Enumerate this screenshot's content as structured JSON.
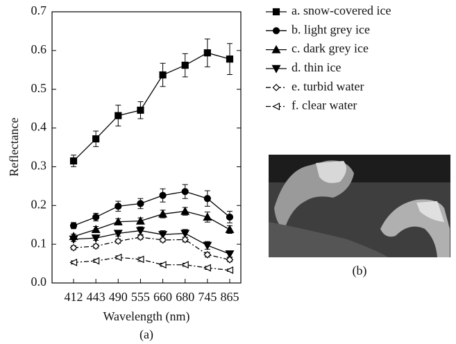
{
  "chart_data": {
    "type": "line",
    "ylabel": "Reflectance",
    "xlabel": "Wavelength (nm)",
    "panel_label": "(a)",
    "image_label": "(b)",
    "categories": [
      "412",
      "443",
      "490",
      "555",
      "660",
      "680",
      "745",
      "865"
    ],
    "ylim": [
      0,
      0.7
    ],
    "yticks": [
      {
        "value": 0,
        "label": "0.0"
      },
      0.1,
      0.2,
      0.3,
      0.4,
      0.5,
      0.6,
      0.7
    ],
    "legend": "outside right",
    "series": [
      {
        "name": "a. snow-covered ice",
        "color": "#000000",
        "marker": "square",
        "line_style": "solid",
        "values": [
          0.315,
          0.372,
          0.432,
          0.446,
          0.537,
          0.562,
          0.594,
          0.578
        ],
        "errors": [
          0.015,
          0.02,
          0.027,
          0.022,
          0.03,
          0.03,
          0.036,
          0.04
        ]
      },
      {
        "name": "b. light grey ice",
        "color": "#000000",
        "marker": "circle",
        "line_style": "solid",
        "values": [
          0.148,
          0.17,
          0.198,
          0.205,
          0.226,
          0.236,
          0.218,
          0.17
        ],
        "errors": [
          0.008,
          0.01,
          0.013,
          0.013,
          0.017,
          0.018,
          0.02,
          0.015
        ]
      },
      {
        "name": "c. dark grey ice",
        "color": "#000000",
        "marker": "triangle-up",
        "line_style": "solid",
        "values": [
          0.12,
          0.138,
          0.158,
          0.16,
          0.178,
          0.185,
          0.17,
          0.138
        ],
        "errors": [
          0.006,
          0.008,
          0.008,
          0.008,
          0.01,
          0.01,
          0.013,
          0.01
        ]
      },
      {
        "name": "d. thin ice",
        "color": "#000000",
        "marker": "triangle-down",
        "line_style": "solid",
        "values": [
          0.113,
          0.116,
          0.128,
          0.135,
          0.125,
          0.128,
          0.097,
          0.075
        ],
        "errors": [
          0.006,
          0.006,
          0.007,
          0.01,
          0.01,
          0.01,
          0.01,
          0.008
        ]
      },
      {
        "name": "e. turbid water",
        "color": "#000000",
        "marker": "diamond-open",
        "line_style": "dash-dot",
        "values": [
          0.091,
          0.095,
          0.108,
          0.118,
          0.111,
          0.112,
          0.073,
          0.06
        ],
        "errors": [
          0.005,
          0.005,
          0.005,
          0.005,
          0.005,
          0.006,
          0.006,
          0.005
        ]
      },
      {
        "name": "f. clear water",
        "color": "#000000",
        "marker": "triangle-left-open",
        "line_style": "dash-dot",
        "values": [
          0.053,
          0.057,
          0.066,
          0.061,
          0.047,
          0.047,
          0.039,
          0.033
        ],
        "errors": [
          0.004,
          0.004,
          0.004,
          0.005,
          0.004,
          0.004,
          0.004,
          0.003
        ]
      }
    ]
  }
}
